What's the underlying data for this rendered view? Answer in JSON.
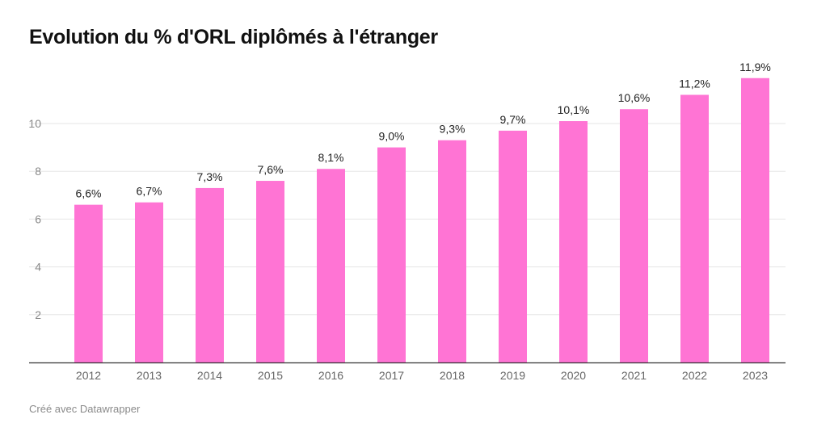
{
  "title": "Evolution du % d'ORL diplômés à l'étranger",
  "footer": "Créé avec Datawrapper",
  "colors": {
    "bar": "#ff74d4",
    "grid": "#e6e6e6",
    "axis": "#333333",
    "tick_text": "#888888",
    "label_text": "#222222"
  },
  "chart_data": {
    "type": "bar",
    "title": "Evolution du % d'ORL diplômés à l'étranger",
    "xlabel": "",
    "ylabel": "",
    "categories": [
      "2012",
      "2013",
      "2014",
      "2015",
      "2016",
      "2017",
      "2018",
      "2019",
      "2020",
      "2021",
      "2022",
      "2023"
    ],
    "values": [
      6.6,
      6.7,
      7.3,
      7.6,
      8.1,
      9.0,
      9.3,
      9.7,
      10.1,
      10.6,
      11.2,
      11.9
    ],
    "data_labels": [
      "6,6%",
      "6,7%",
      "7,3%",
      "7,6%",
      "8,1%",
      "9,0%",
      "9,3%",
      "9,7%",
      "10,1%",
      "10,6%",
      "11,2%",
      "11,9%"
    ],
    "yticks": [
      2,
      4,
      6,
      8,
      10
    ],
    "ylim": [
      0,
      12
    ],
    "grid": true,
    "legend": "none"
  }
}
